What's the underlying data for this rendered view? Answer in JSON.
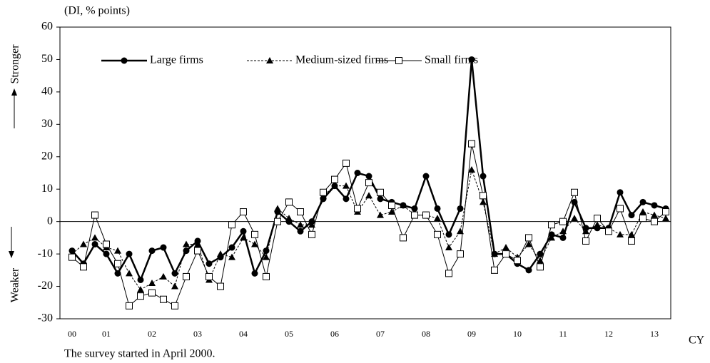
{
  "chart_data": {
    "type": "line",
    "y_unit_label": "(DI, % points)",
    "x_axis_label": "CY",
    "footnote": "The survey started in April 2000.",
    "upper_direction_label": "Stronger",
    "lower_direction_label": "Weaker",
    "categories": [
      "00",
      null,
      null,
      "01",
      null,
      null,
      null,
      "02",
      null,
      null,
      null,
      "03",
      null,
      null,
      null,
      "04",
      null,
      null,
      null,
      "05",
      null,
      null,
      null,
      "06",
      null,
      null,
      null,
      "07",
      null,
      null,
      null,
      "08",
      null,
      null,
      null,
      "09",
      null,
      null,
      null,
      "10",
      null,
      null,
      null,
      "11",
      null,
      null,
      null,
      "12",
      null,
      null,
      null,
      "13",
      null
    ],
    "ylim": [
      -30,
      60
    ],
    "yticks": [
      -30,
      -20,
      -10,
      0,
      10,
      20,
      30,
      40,
      50,
      60
    ],
    "series": [
      {
        "name": "Large firms",
        "color": "#000000",
        "marker": "circle",
        "dashed": false,
        "bold": true,
        "values": [
          -9,
          -13,
          -7,
          -10,
          -16,
          -10,
          -18,
          -9,
          -8,
          -16,
          -9,
          -6,
          -13,
          -11,
          -8,
          -3,
          -16,
          -9,
          3,
          0,
          -3,
          0,
          7,
          11,
          7,
          15,
          14,
          7,
          6,
          5,
          4,
          14,
          4,
          -4,
          4,
          50,
          14,
          -10,
          -10,
          -13,
          -15,
          -10,
          -4,
          -5,
          6,
          -2,
          -2,
          -2,
          9,
          2,
          6,
          5,
          4
        ]
      },
      {
        "name": "Medium-sized firms",
        "color": "#000000",
        "marker": "triangle",
        "dashed": true,
        "bold": false,
        "values": [
          -10,
          -7,
          -5,
          -8,
          -9,
          -16,
          -21,
          -19,
          -17,
          -20,
          -7,
          -7,
          -18,
          -10,
          -11,
          -5,
          -7,
          -11,
          4,
          1,
          -1,
          -1,
          8,
          11,
          11,
          3,
          8,
          2,
          3,
          5,
          2,
          2,
          1,
          -8,
          -3,
          16,
          6,
          -10,
          -8,
          -11,
          -7,
          -12,
          -5,
          -3,
          1,
          -3,
          -1,
          -2,
          -4,
          -4,
          3,
          2,
          1
        ]
      },
      {
        "name": "Small firms",
        "color": "#000000",
        "marker": "square",
        "dashed": false,
        "bold": false,
        "values": [
          -11,
          -14,
          2,
          -7,
          -13,
          -26,
          -23,
          -22,
          -24,
          -26,
          -17,
          -9,
          -17,
          -20,
          -1,
          3,
          -4,
          -17,
          0,
          6,
          3,
          -4,
          9,
          13,
          18,
          4,
          12,
          9,
          5,
          -5,
          2,
          2,
          -4,
          -16,
          -10,
          24,
          8,
          -15,
          -10,
          -12,
          -5,
          -14,
          -1,
          0,
          9,
          -6,
          1,
          -3,
          4,
          -6,
          1,
          0,
          3
        ]
      }
    ]
  }
}
